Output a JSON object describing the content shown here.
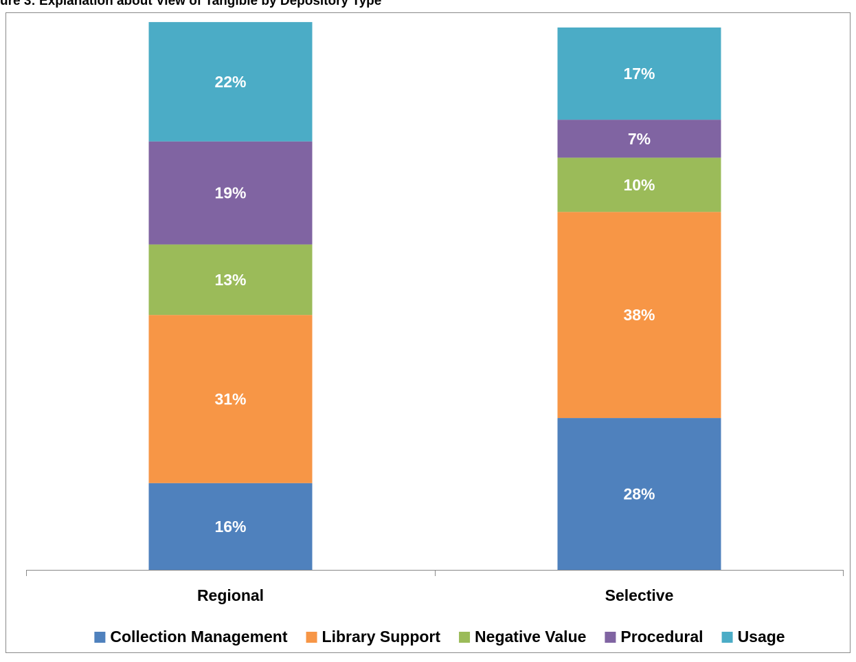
{
  "chart_data": {
    "type": "stacked_bar",
    "title": "ure 3: Explanation about View of Tangible by Depository Type",
    "categories": [
      "Regional",
      "Selective"
    ],
    "series": [
      {
        "name": "Collection Management",
        "color": "#4f81bd",
        "values": [
          16,
          28
        ],
        "value_labels": [
          "16%",
          "28%"
        ]
      },
      {
        "name": "Library Support",
        "color": "#f79646",
        "values": [
          31,
          38
        ],
        "value_labels": [
          "31%",
          "38%"
        ]
      },
      {
        "name": "Negative Value",
        "color": "#9bbb59",
        "values": [
          13,
          10
        ],
        "value_labels": [
          "13%",
          "10%"
        ]
      },
      {
        "name": "Procedural",
        "color": "#8064a2",
        "values": [
          19,
          7
        ],
        "value_labels": [
          "19%",
          "7%"
        ]
      },
      {
        "name": "Usage",
        "color": "#4bacc6",
        "values": [
          22,
          17
        ],
        "value_labels": [
          "22%",
          "17%"
        ]
      }
    ],
    "ylim": [
      0,
      100
    ],
    "legend": "bottom"
  }
}
